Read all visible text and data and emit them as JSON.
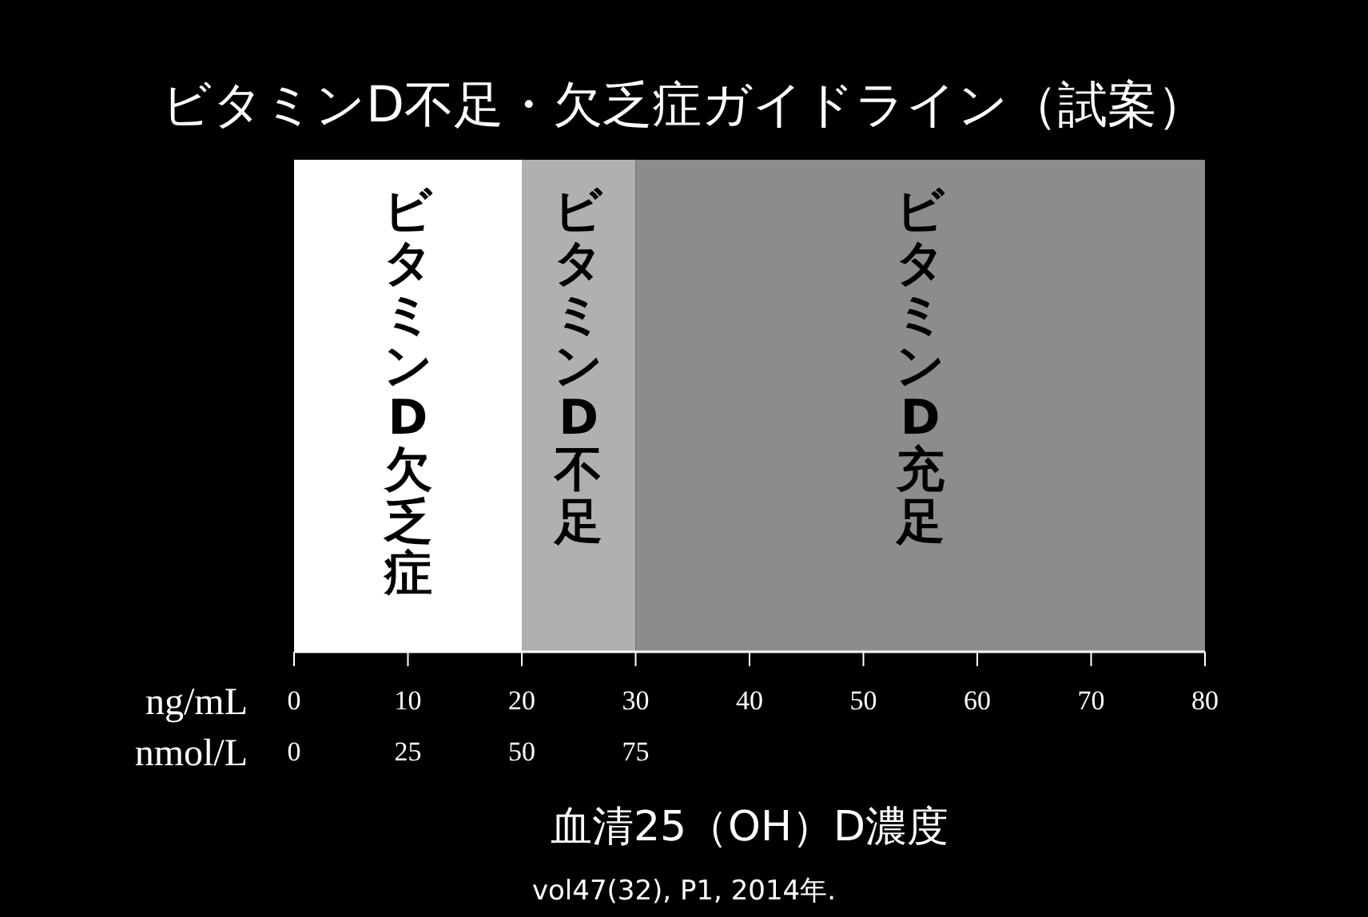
{
  "chart_data": {
    "type": "bar",
    "orientation": "horizontal",
    "stacked": true,
    "title": "ビタミンD不足・欠乏症ガイドライン（試案）",
    "xlabel": "血清25（OH）D濃度",
    "categories": [
      null
    ],
    "series": [
      {
        "name": "ビタミンD欠乏症",
        "color": "#ffffff",
        "values": [
          20
        ]
      },
      {
        "name": "ビタミンD不足",
        "color": "#b0b0b0",
        "values": [
          10
        ]
      },
      {
        "name": "ビタミンD充足",
        "color": "#8c8c8c",
        "values": [
          50
        ]
      }
    ],
    "xlim": [
      0,
      80
    ],
    "xticks": [
      0,
      10,
      20,
      30,
      40,
      50,
      60,
      70,
      80
    ],
    "x2lim": [
      0,
      200
    ],
    "x2ticks": [
      0,
      25,
      50,
      75
    ],
    "annotations": [
      "ng/mL",
      "nmol/L",
      "vol47(32), P1, 2014年."
    ]
  }
}
